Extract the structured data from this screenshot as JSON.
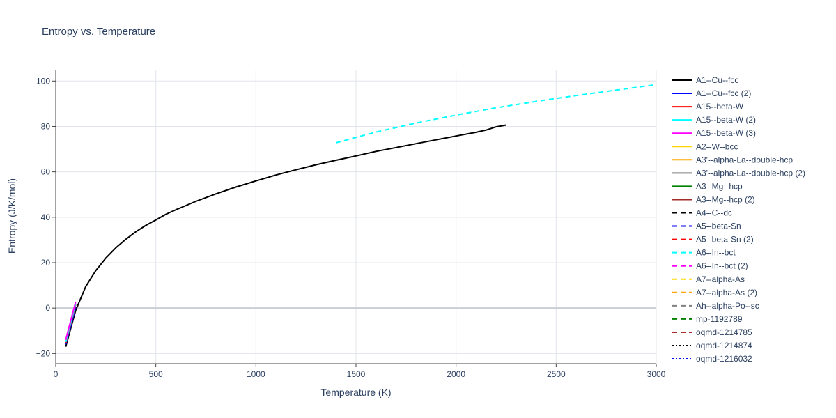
{
  "chart_data": {
    "type": "line",
    "title": "Entropy vs. Temperature",
    "xlabel": "Temperature (K)",
    "ylabel": "Entropy (J/K/mol)",
    "xlim": [
      0,
      3000
    ],
    "ylim": [
      -24.5,
      105
    ],
    "xticks": [
      0,
      500,
      1000,
      1500,
      2000,
      2500,
      3000
    ],
    "yticks": [
      -20,
      0,
      20,
      40,
      60,
      80,
      100
    ],
    "xtick_labels": [
      "0",
      "500",
      "1000",
      "1500",
      "2000",
      "2500",
      "3000"
    ],
    "ytick_labels": [
      "−20",
      "0",
      "20",
      "40",
      "60",
      "80",
      "100"
    ],
    "grid": true,
    "legend_position": "right",
    "series": [
      {
        "name": "A1--Cu--fcc",
        "color": "#000000",
        "dash": "solid",
        "x": [
          50,
          75,
          100,
          150,
          200,
          250,
          300,
          350,
          400,
          450,
          500,
          550,
          600,
          700,
          800,
          900,
          1000,
          1100,
          1200,
          1300,
          1400,
          1500,
          1600,
          1700,
          1800,
          1900,
          2000,
          2100,
          2150,
          2200,
          2250
        ],
        "y": [
          -17,
          -9,
          -1,
          9.5,
          16.5,
          22,
          26.5,
          30.3,
          33.6,
          36.4,
          38.8,
          41.3,
          43.3,
          47,
          50.3,
          53.3,
          56,
          58.6,
          60.9,
          63.1,
          65.1,
          67,
          69,
          70.7,
          72.4,
          74.1,
          75.8,
          77.4,
          78.4,
          79.8,
          80.6
        ]
      },
      {
        "name": "A1--Cu--fcc (2)",
        "color": "#0000ff",
        "dash": "solid",
        "x": [
          50,
          75,
          100
        ],
        "y": [
          -16,
          -8,
          0.5
        ]
      },
      {
        "name": "A15--beta-W",
        "color": "#ff0000",
        "dash": "solid",
        "x": [
          50,
          75,
          100
        ],
        "y": [
          -15.5,
          -7,
          1.5
        ]
      },
      {
        "name": "A15--beta-W (2)",
        "color": "#00ffff",
        "dash": "solid",
        "x": [
          50,
          75,
          100
        ],
        "y": [
          -15,
          -6.5,
          2
        ]
      },
      {
        "name": "A15--beta-W (3)",
        "color": "#ff00ff",
        "dash": "solid",
        "x": [
          50,
          75,
          100
        ],
        "y": [
          -14,
          -5.5,
          2.8
        ]
      },
      {
        "name": "A2--W--bcc",
        "color": "#ffd700",
        "dash": "solid",
        "x": [],
        "y": []
      },
      {
        "name": "A3'--alpha-La--double-hcp",
        "color": "#ffa500",
        "dash": "solid",
        "x": [],
        "y": []
      },
      {
        "name": "A3'--alpha-La--double-hcp (2)",
        "color": "#808080",
        "dash": "solid",
        "x": [],
        "y": []
      },
      {
        "name": "A3--Mg--hcp",
        "color": "#008000",
        "dash": "solid",
        "x": [],
        "y": []
      },
      {
        "name": "A3--Mg--hcp (2)",
        "color": "#a52a2a",
        "dash": "solid",
        "x": [],
        "y": []
      },
      {
        "name": "A4--C--dc",
        "color": "#000000",
        "dash": "dash",
        "x": [],
        "y": []
      },
      {
        "name": "A5--beta-Sn",
        "color": "#0000ff",
        "dash": "dash",
        "x": [],
        "y": []
      },
      {
        "name": "A5--beta-Sn (2)",
        "color": "#ff0000",
        "dash": "dash",
        "x": [],
        "y": []
      },
      {
        "name": "A6--In--bct",
        "color": "#00ffff",
        "dash": "dash",
        "x": [
          1400,
          1600,
          1800,
          2000,
          2200,
          2400,
          2600,
          2800,
          3000
        ],
        "y": [
          72.8,
          77.5,
          81.5,
          85,
          88.2,
          91,
          93.6,
          96,
          98.4
        ]
      },
      {
        "name": "A6--In--bct (2)",
        "color": "#ff00ff",
        "dash": "dash",
        "x": [],
        "y": []
      },
      {
        "name": "A7--alpha-As",
        "color": "#ffd700",
        "dash": "dash",
        "x": [],
        "y": []
      },
      {
        "name": "A7--alpha-As (2)",
        "color": "#ffa500",
        "dash": "dash",
        "x": [],
        "y": []
      },
      {
        "name": "Ah--alpha-Po--sc",
        "color": "#808080",
        "dash": "dash",
        "x": [],
        "y": []
      },
      {
        "name": "mp-1192789",
        "color": "#008000",
        "dash": "dash",
        "x": [],
        "y": []
      },
      {
        "name": "oqmd-1214785",
        "color": "#a52a2a",
        "dash": "dash",
        "x": [],
        "y": []
      },
      {
        "name": "oqmd-1214874",
        "color": "#000000",
        "dash": "dot",
        "x": [],
        "y": []
      },
      {
        "name": "oqmd-1216032",
        "color": "#0000ff",
        "dash": "dot",
        "x": [],
        "y": []
      }
    ]
  }
}
